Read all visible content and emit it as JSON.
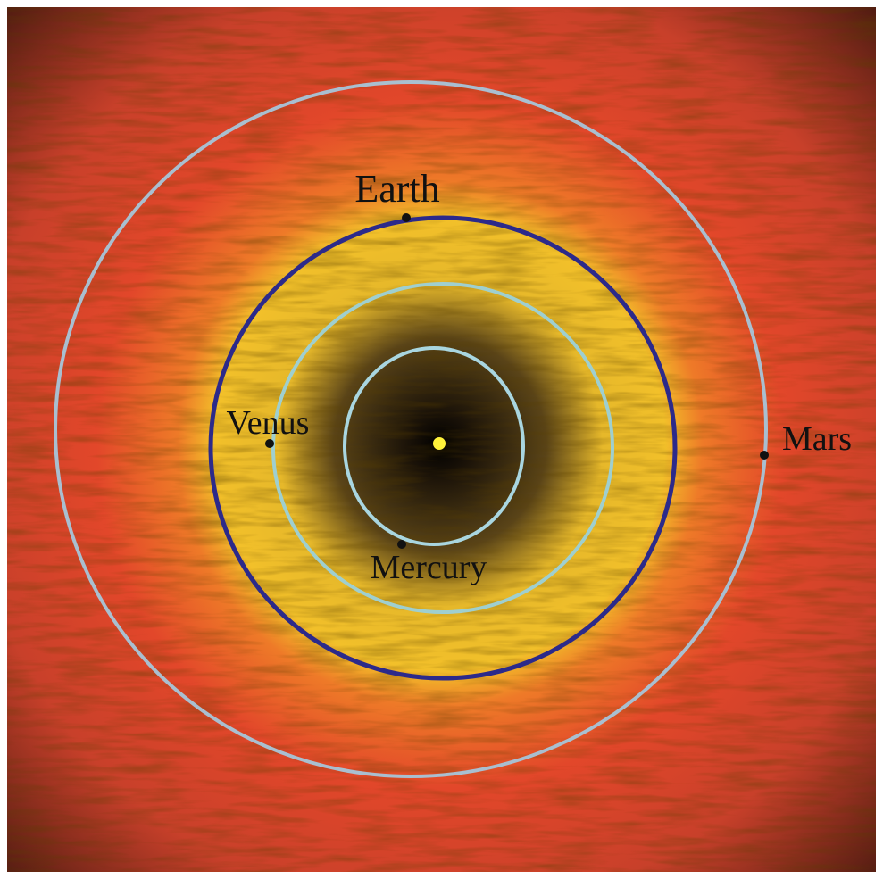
{
  "labels": {
    "earth": "Earth",
    "venus": "Venus",
    "mars": "Mars",
    "mercury": "Mercury"
  }
}
